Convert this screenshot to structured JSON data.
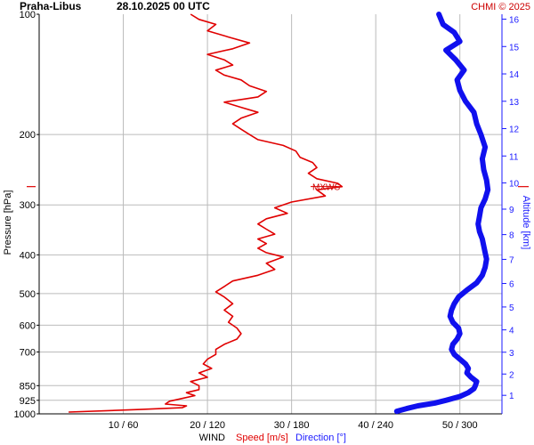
{
  "header": {
    "station": "Praha-Libus",
    "datetime": "28.10.2025 00 UTC",
    "credit": "CHMI © 2025"
  },
  "chart_data": {
    "type": "line",
    "ylabel": "Pressure [hPa]",
    "y2label": "Altitude [km]",
    "xlabel_parts": {
      "wind": "WIND",
      "speed": "Speed [m/s]",
      "direction": "Direction [°]"
    },
    "y_scale": "log",
    "ylim": [
      1000,
      100
    ],
    "pressure_ticks": [
      100,
      200,
      300,
      400,
      500,
      600,
      700,
      850,
      925,
      1000
    ],
    "pressure_gridlines": [
      200,
      300,
      400,
      500,
      600,
      700,
      850,
      925
    ],
    "altitude_ticks": [
      1,
      2,
      3,
      4,
      5,
      6,
      7,
      8,
      9,
      10,
      11,
      12,
      13,
      14,
      15,
      16
    ],
    "x_ticks": [
      "10 / 60",
      "20 / 120",
      "30 / 180",
      "40 / 240",
      "50 / 300"
    ],
    "speed_xlim": [
      0,
      55
    ],
    "direction_xlim": [
      0,
      330
    ],
    "colors": {
      "speed": "#e00000",
      "direction": "#1010ee",
      "grid": "#bbbbbb",
      "altitude_axis": "#1a1aff"
    },
    "max_wind_label": "MXWS",
    "max_wind_pressure": 270,
    "series": [
      {
        "name": "Speed [m/s]",
        "pressure": [
          990,
          975,
          965,
          955,
          945,
          930,
          915,
          900,
          885,
          870,
          850,
          830,
          810,
          790,
          770,
          750,
          730,
          710,
          690,
          670,
          650,
          630,
          610,
          590,
          570,
          550,
          530,
          510,
          495,
          480,
          465,
          450,
          435,
          420,
          405,
          395,
          385,
          375,
          365,
          355,
          345,
          335,
          325,
          315,
          305,
          295,
          285,
          275,
          270,
          265,
          258,
          250,
          242,
          235,
          228,
          220,
          213,
          206,
          200,
          194,
          188,
          182,
          176,
          171,
          166,
          161,
          156,
          151,
          146,
          142,
          138,
          134,
          130,
          126,
          122,
          118,
          114,
          110,
          106,
          103,
          100
        ],
        "values": [
          3.5,
          12,
          17,
          17.5,
          15,
          15.5,
          17,
          18.5,
          17.5,
          19,
          19,
          18,
          20,
          19,
          20.5,
          19.5,
          20,
          21,
          21,
          22,
          23.5,
          24,
          23.5,
          22.5,
          23,
          22,
          23,
          22,
          21,
          22,
          23,
          26,
          28,
          27,
          29,
          27,
          26,
          27,
          26,
          28,
          27,
          26,
          27,
          29.5,
          28,
          30,
          34,
          33,
          36,
          35.5,
          33,
          32,
          33,
          32.5,
          31,
          30.5,
          29,
          26,
          25,
          24,
          23,
          24,
          26,
          24,
          22,
          26,
          27,
          25,
          24,
          22,
          21,
          23,
          22,
          20,
          23,
          25,
          22.5,
          20,
          21,
          19,
          18
        ]
      },
      {
        "name": "Direction [°]",
        "pressure": [
          985,
          970,
          955,
          940,
          925,
          905,
          885,
          865,
          850,
          830,
          810,
          790,
          770,
          750,
          730,
          710,
          690,
          670,
          650,
          630,
          610,
          590,
          570,
          550,
          530,
          510,
          490,
          470,
          450,
          430,
          410,
          395,
          380,
          365,
          350,
          335,
          320,
          305,
          290,
          275,
          260,
          245,
          230,
          215,
          200,
          188,
          176,
          165,
          155,
          146,
          138,
          130,
          123,
          117,
          111,
          106,
          100
        ],
        "values": [
          255,
          262,
          270,
          282,
          290,
          300,
          306,
          310,
          311,
          312,
          308,
          305,
          306,
          304,
          300,
          296,
          294,
          295,
          298,
          300,
          299,
          295,
          293,
          294,
          296,
          299,
          305,
          312,
          316,
          318,
          319,
          318,
          317,
          316,
          314,
          313,
          314,
          315,
          318,
          320,
          319,
          317,
          316,
          318,
          315,
          312,
          310,
          304,
          300,
          298,
          303,
          297,
          290,
          300,
          296,
          288,
          285
        ]
      }
    ]
  }
}
